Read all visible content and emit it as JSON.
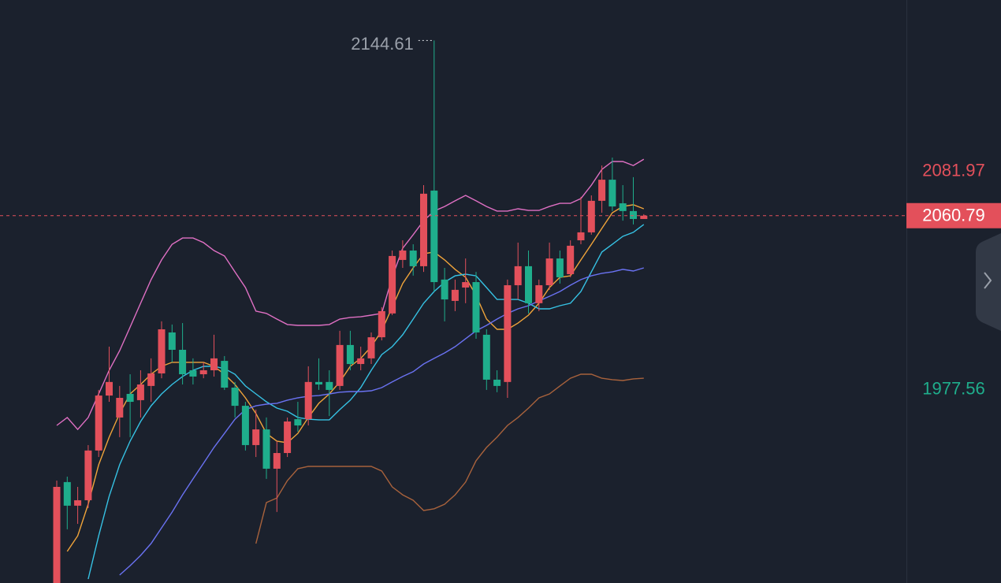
{
  "chart_data": {
    "type": "candlestick",
    "ylim": [
      1885,
      2164
    ],
    "up_color": "#e3505b",
    "down_color": "#1fae8c",
    "candles": {
      "open": [
        1885.0,
        1933.3,
        1922.0,
        1924.6,
        1948.4,
        1974.7,
        1964.2,
        1975.5,
        1972.5,
        1979.3,
        1985.3,
        2004.9,
        1996.6,
        1986.8,
        1984.9,
        1986.8,
        1991.3,
        1978.5,
        1969.8,
        1951.0,
        1958.5,
        1939.7,
        1947.2,
        1963.4,
        1963.4,
        1981.2,
        1981.2,
        1979.3,
        1998.9,
        1989.8,
        1992.5,
        2002.6,
        2014.0,
        2039.6,
        2044.1,
        2036.6,
        2072.8,
        2030.2,
        2020.0,
        2026.4,
        2029.0,
        2003.8,
        1982.3,
        1981.2,
        2027.5,
        2036.6,
        2018.9,
        2027.5,
        2040.3,
        2032.8,
        2049.0,
        2052.8,
        2067.9,
        2078.0,
        2066.7,
        2063.0,
        2059.2
      ],
      "high": [
        1934.0,
        1935.9,
        1931.0,
        1951.0,
        1977.4,
        1998.1,
        1979.3,
        1984.9,
        1986.8,
        1992.5,
        2010.2,
        2008.7,
        2009.4,
        1992.5,
        1990.6,
        2003.8,
        1993.6,
        1981.2,
        1971.7,
        1968.0,
        1964.2,
        1952.9,
        1964.2,
        1971.7,
        1988.7,
        1992.5,
        1986.8,
        2005.7,
        2005.7,
        1998.1,
        2004.9,
        2017.0,
        2044.1,
        2049.0,
        2047.1,
        2075.4,
        2144.61,
        2035.8,
        2030.2,
        2040.3,
        2033.9,
        2006.4,
        1986.8,
        2030.2,
        2047.9,
        2044.1,
        2030.2,
        2047.9,
        2044.1,
        2049.0,
        2069.8,
        2070.5,
        2084.8,
        2088.6,
        2075.4,
        2079.2,
        2061.5
      ],
      "low": [
        1885.0,
        1910.7,
        1913.3,
        1920.8,
        1945.3,
        1971.7,
        1954.8,
        1954.8,
        1964.2,
        1971.7,
        1983.0,
        1990.6,
        1980.0,
        1980.0,
        1983.0,
        1983.8,
        1977.4,
        1964.2,
        1948.4,
        1945.3,
        1934.8,
        1919.0,
        1945.3,
        1957.4,
        1960.4,
        1977.4,
        1964.9,
        1977.4,
        1986.8,
        1986.8,
        1989.8,
        2001.1,
        2013.2,
        2035.8,
        2032.1,
        2033.9,
        2024.5,
        2010.2,
        2015.1,
        2018.9,
        2001.9,
        1977.4,
        1976.3,
        1973.6,
        2020.7,
        2014.0,
        2015.1,
        2025.3,
        2028.3,
        2031.3,
        2047.1,
        2051.7,
        2062.2,
        2063.0,
        2058.4,
        2056.6,
        2059.2
      ],
      "close": [
        1931.0,
        1922.0,
        1924.6,
        1948.4,
        1974.7,
        1981.2,
        1973.6,
        1971.7,
        1980.0,
        1985.3,
        2006.4,
        1996.6,
        1984.9,
        1983.8,
        1986.8,
        1992.5,
        1978.5,
        1969.8,
        1951.0,
        1958.5,
        1939.7,
        1947.2,
        1962.3,
        1960.4,
        1981.2,
        1980.0,
        1977.4,
        1998.9,
        1989.8,
        1992.5,
        2002.6,
        2015.1,
        2041.5,
        2044.1,
        2036.6,
        2071.3,
        2029.0,
        2020.7,
        2025.3,
        2029.0,
        2004.9,
        1982.3,
        1979.3,
        2027.5,
        2036.6,
        2018.9,
        2027.5,
        2040.3,
        2031.3,
        2046.4,
        2052.8,
        2067.9,
        2078.0,
        2065.2,
        2063.0,
        2059.2,
        2060.79
      ]
    },
    "lines": [
      {
        "color": "#e070c4",
        "values": [
          1960.4,
          1964.2,
          1958.5,
          1964.2,
          1975.5,
          1986.8,
          1996.2,
          2007.5,
          2018.9,
          2030.2,
          2039.6,
          2047.1,
          2050.1,
          2050.1,
          2047.9,
          2044.1,
          2041.5,
          2033.9,
          2026.4,
          2015.1,
          2014.0,
          2011.3,
          2008.7,
          2008.3,
          2008.3,
          2008.3,
          2008.7,
          2011.3,
          2012.1,
          2012.4,
          2013.2,
          2014.0,
          2031.3,
          2045.2,
          2051.7,
          2058.4,
          2063.0,
          2065.2,
          2067.9,
          2070.5,
          2067.9,
          2065.2,
          2063.0,
          2063.0,
          2064.1,
          2063.3,
          2063.3,
          2065.2,
          2066.7,
          2066.7,
          2069.0,
          2075.4,
          2082.9,
          2086.7,
          2086.7,
          2084.8,
          2087.8
        ]
      },
      {
        "color": "#a8623c",
        "values": [
          null,
          null,
          null,
          null,
          null,
          null,
          null,
          null,
          null,
          null,
          null,
          null,
          null,
          null,
          null,
          null,
          null,
          null,
          null,
          1903.9,
          1923.5,
          1925.7,
          1934.0,
          1939.7,
          1940.8,
          1940.8,
          1940.8,
          1940.8,
          1940.8,
          1940.8,
          1940.8,
          1938.6,
          1931.0,
          1927.2,
          1924.6,
          1919.7,
          1920.5,
          1922.7,
          1927.2,
          1933.3,
          1943.5,
          1949.9,
          1954.8,
          1960.4,
          1964.2,
          1968.7,
          1973.6,
          1975.5,
          1979.3,
          1983.0,
          1984.9,
          1984.9,
          1983.0,
          1982.3,
          1981.9,
          1982.7,
          1983.0
        ]
      },
      {
        "color": "#f0a43a",
        "values": [
          null,
          1900.1,
          1907.6,
          1922.7,
          1941.6,
          1954.8,
          1966.1,
          1975.5,
          1980.0,
          1984.9,
          1988.7,
          1990.6,
          1990.6,
          1990.6,
          1990.6,
          1988.7,
          1984.9,
          1980.0,
          1973.6,
          1966.1,
          1956.6,
          1952.9,
          1952.1,
          1956.6,
          1964.2,
          1971.0,
          1975.5,
          1981.2,
          1988.7,
          1992.5,
          1998.1,
          2005.7,
          2017.0,
          2028.3,
          2035.8,
          2042.6,
          2043.4,
          2039.6,
          2035.1,
          2031.3,
          2022.6,
          2011.3,
          2006.4,
          2006.4,
          2009.4,
          2013.2,
          2018.9,
          2026.4,
          2031.3,
          2032.0,
          2039.6,
          2047.1,
          2054.7,
          2062.2,
          2065.2,
          2066.0,
          2064.1
        ]
      },
      {
        "color": "#36c2e4",
        "values": [
          null,
          null,
          null,
          1886.9,
          1907.6,
          1926.5,
          1941.6,
          1952.9,
          1962.3,
          1969.8,
          1975.5,
          1980.0,
          1983.8,
          1986.8,
          1988.7,
          1988.7,
          1987.6,
          1984.9,
          1979.3,
          1975.5,
          1971.7,
          1968.7,
          1967.2,
          1964.2,
          1963.4,
          1963.1,
          1963.1,
          1968.0,
          1972.5,
          1978.5,
          1986.8,
          1994.3,
          1998.1,
          2003.8,
          2011.3,
          2018.9,
          2024.5,
          2029.0,
          2032.0,
          2032.8,
          2032.0,
          2026.4,
          2020.7,
          2020.7,
          2020.7,
          2018.9,
          2016.2,
          2016.2,
          2017.7,
          2018.9,
          2024.5,
          2033.9,
          2043.4,
          2047.1,
          2050.9,
          2052.8,
          2056.6
        ]
      },
      {
        "color": "#6a72f2",
        "values": [
          null,
          null,
          null,
          null,
          null,
          null,
          1888.8,
          1893.3,
          1898.2,
          1903.9,
          1911.4,
          1918.9,
          1927.2,
          1934.8,
          1942.3,
          1949.9,
          1956.6,
          1963.4,
          1968.0,
          1969.8,
          1970.6,
          1971.0,
          1972.5,
          1973.6,
          1974.4,
          1974.7,
          1975.5,
          1976.3,
          1976.6,
          1976.6,
          1977.0,
          1978.5,
          1981.2,
          1983.8,
          1986.1,
          1989.8,
          1992.5,
          1995.1,
          1998.1,
          2001.9,
          2005.7,
          2008.3,
          2011.3,
          2014.0,
          2016.2,
          2017.7,
          2020.0,
          2022.2,
          2024.5,
          2027.5,
          2030.2,
          2032.0,
          2033.2,
          2033.9,
          2035.1,
          2034.3,
          2035.8
        ]
      }
    ],
    "last_price": 2060.79,
    "price_labels": [
      {
        "value": 2081.97,
        "color": "#e3505b"
      },
      {
        "value": 1977.56,
        "color": "#1fae8c"
      }
    ]
  }
}
